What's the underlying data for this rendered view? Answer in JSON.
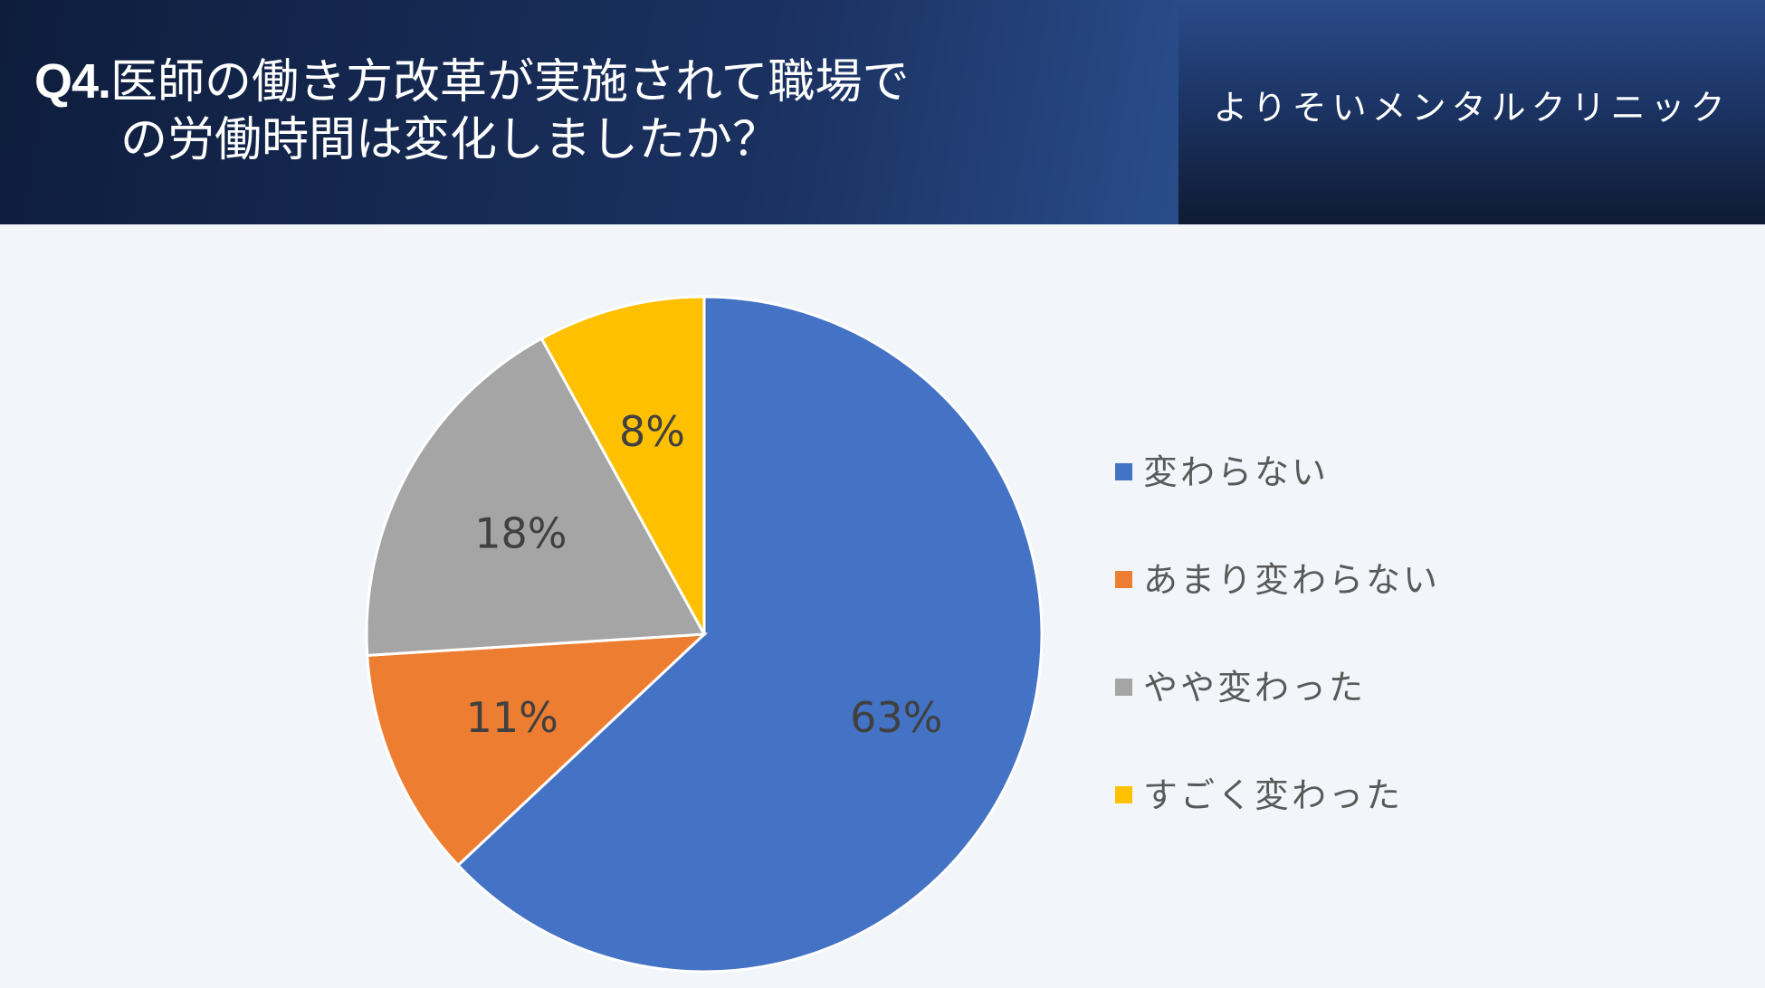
{
  "header": {
    "question_number": "Q4.",
    "title_line1": "医師の働き方改革が実施されて職場で",
    "title_line2": "の労働時間は変化しましたか？",
    "clinic_name": "よりそいメンタルクリニック"
  },
  "chart_data": {
    "type": "pie",
    "categories": [
      "変わらない",
      "あまり変わらない",
      "やや変わった",
      "すごく変わった"
    ],
    "values": [
      63,
      11,
      18,
      8
    ],
    "data_labels": [
      "63%",
      "11%",
      "18%",
      "8%"
    ],
    "colors": [
      "#4472c4",
      "#ed7d31",
      "#a5a5a5",
      "#ffc000"
    ],
    "start_angle": "12 o'clock",
    "direction": "clockwise",
    "legend_placement": "right"
  }
}
